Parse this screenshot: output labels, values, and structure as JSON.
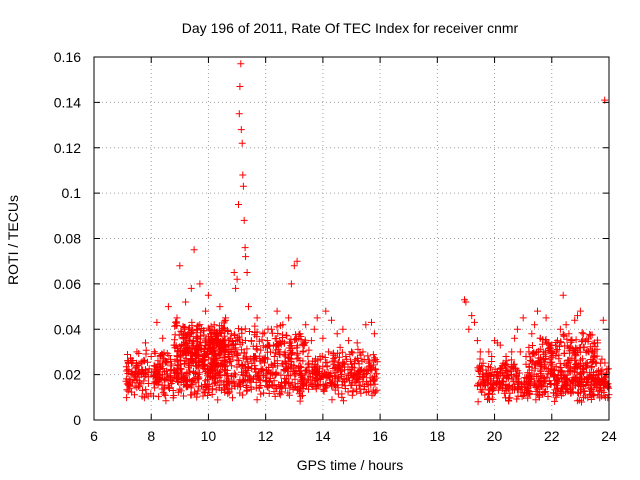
{
  "chart_data": {
    "type": "scatter",
    "title": "Day 196 of 2011, Rate Of TEC Index for receiver cnmr",
    "xlabel": "GPS time / hours",
    "ylabel": "ROTI / TECUs",
    "xlim": [
      6,
      24
    ],
    "ylim": [
      0,
      0.16
    ],
    "xticks": [
      6,
      8,
      10,
      12,
      14,
      16,
      18,
      20,
      22,
      24
    ],
    "xtick_labels": [
      "6",
      "8",
      "10",
      "12",
      "14",
      "16",
      "18",
      "20",
      "22",
      "24"
    ],
    "yticks": [
      0,
      0.02,
      0.04,
      0.06,
      0.08,
      0.1,
      0.12,
      0.14,
      0.16
    ],
    "ytick_labels": [
      "0",
      "0.02",
      "0.04",
      "0.06",
      "0.08",
      "0.1",
      "0.12",
      "0.14",
      "0.16"
    ],
    "grid": true,
    "marker": "+",
    "color": "#ff0000",
    "series": [
      {
        "name": "ROTI",
        "points": [
          [
            7.2,
            0.025
          ],
          [
            7.3,
            0.02
          ],
          [
            7.4,
            0.018
          ],
          [
            7.5,
            0.03
          ],
          [
            7.6,
            0.015
          ],
          [
            7.7,
            0.022
          ],
          [
            7.8,
            0.034
          ],
          [
            7.9,
            0.019
          ],
          [
            8.0,
            0.028
          ],
          [
            8.1,
            0.024
          ],
          [
            8.2,
            0.043
          ],
          [
            8.3,
            0.02
          ],
          [
            8.4,
            0.036
          ],
          [
            8.5,
            0.026
          ],
          [
            8.6,
            0.05
          ],
          [
            8.7,
            0.022
          ],
          [
            8.8,
            0.033
          ],
          [
            8.9,
            0.045
          ],
          [
            9.0,
            0.068
          ],
          [
            9.1,
            0.03
          ],
          [
            9.2,
            0.052
          ],
          [
            9.3,
            0.04
          ],
          [
            9.4,
            0.058
          ],
          [
            9.5,
            0.075
          ],
          [
            9.6,
            0.036
          ],
          [
            9.7,
            0.06
          ],
          [
            9.8,
            0.028
          ],
          [
            9.9,
            0.048
          ],
          [
            10.0,
            0.055
          ],
          [
            10.1,
            0.038
          ],
          [
            10.2,
            0.042
          ],
          [
            10.3,
            0.025
          ],
          [
            10.4,
            0.05
          ],
          [
            10.5,
            0.032
          ],
          [
            10.6,
            0.045
          ],
          [
            10.7,
            0.028
          ],
          [
            10.8,
            0.038
          ],
          [
            10.9,
            0.065
          ],
          [
            10.95,
            0.058
          ],
          [
            11.0,
            0.062
          ],
          [
            11.05,
            0.095
          ],
          [
            11.08,
            0.135
          ],
          [
            11.1,
            0.147
          ],
          [
            11.13,
            0.157
          ],
          [
            11.15,
            0.128
          ],
          [
            11.18,
            0.122
          ],
          [
            11.2,
            0.108
          ],
          [
            11.22,
            0.103
          ],
          [
            11.25,
            0.088
          ],
          [
            11.28,
            0.076
          ],
          [
            11.3,
            0.072
          ],
          [
            11.35,
            0.065
          ],
          [
            11.4,
            0.05
          ],
          [
            11.5,
            0.035
          ],
          [
            11.6,
            0.028
          ],
          [
            11.7,
            0.045
          ],
          [
            11.8,
            0.026
          ],
          [
            11.9,
            0.038
          ],
          [
            12.0,
            0.032
          ],
          [
            12.1,
            0.022
          ],
          [
            12.2,
            0.04
          ],
          [
            12.3,
            0.028
          ],
          [
            12.4,
            0.048
          ],
          [
            12.5,
            0.03
          ],
          [
            12.6,
            0.042
          ],
          [
            12.7,
            0.025
          ],
          [
            12.8,
            0.045
          ],
          [
            12.9,
            0.06
          ],
          [
            13.0,
            0.068
          ],
          [
            13.1,
            0.07
          ],
          [
            13.2,
            0.038
          ],
          [
            13.3,
            0.03
          ],
          [
            13.4,
            0.042
          ],
          [
            13.5,
            0.025
          ],
          [
            13.6,
            0.035
          ],
          [
            13.7,
            0.04
          ],
          [
            13.8,
            0.045
          ],
          [
            13.9,
            0.028
          ],
          [
            14.0,
            0.036
          ],
          [
            14.1,
            0.048
          ],
          [
            14.2,
            0.03
          ],
          [
            14.3,
            0.044
          ],
          [
            14.4,
            0.026
          ],
          [
            14.5,
            0.038
          ],
          [
            14.6,
            0.032
          ],
          [
            14.7,
            0.04
          ],
          [
            14.8,
            0.028
          ],
          [
            14.9,
            0.035
          ],
          [
            15.0,
            0.03
          ],
          [
            15.1,
            0.025
          ],
          [
            15.2,
            0.034
          ],
          [
            15.3,
            0.02
          ],
          [
            15.4,
            0.03
          ],
          [
            15.5,
            0.042
          ],
          [
            15.6,
            0.025
          ],
          [
            15.7,
            0.043
          ],
          [
            15.8,
            0.038
          ],
          [
            18.95,
            0.053
          ],
          [
            19.0,
            0.052
          ],
          [
            19.1,
            0.04
          ],
          [
            19.2,
            0.046
          ],
          [
            19.3,
            0.043
          ],
          [
            19.4,
            0.035
          ],
          [
            19.5,
            0.03
          ],
          [
            19.6,
            0.025
          ],
          [
            19.7,
            0.022
          ],
          [
            19.8,
            0.03
          ],
          [
            19.9,
            0.028
          ],
          [
            20.0,
            0.035
          ],
          [
            20.1,
            0.034
          ],
          [
            20.2,
            0.033
          ],
          [
            20.3,
            0.025
          ],
          [
            20.4,
            0.028
          ],
          [
            20.5,
            0.022
          ],
          [
            20.6,
            0.03
          ],
          [
            20.7,
            0.036
          ],
          [
            20.8,
            0.04
          ],
          [
            20.9,
            0.03
          ],
          [
            21.0,
            0.045
          ],
          [
            21.1,
            0.028
          ],
          [
            21.2,
            0.032
          ],
          [
            21.3,
            0.038
          ],
          [
            21.4,
            0.042
          ],
          [
            21.5,
            0.048
          ],
          [
            21.6,
            0.036
          ],
          [
            21.7,
            0.03
          ],
          [
            21.8,
            0.045
          ],
          [
            21.9,
            0.034
          ],
          [
            22.0,
            0.03
          ],
          [
            22.1,
            0.022
          ],
          [
            22.2,
            0.035
          ],
          [
            22.3,
            0.04
          ],
          [
            22.4,
            0.055
          ],
          [
            22.5,
            0.042
          ],
          [
            22.6,
            0.038
          ],
          [
            22.7,
            0.035
          ],
          [
            22.8,
            0.044
          ],
          [
            22.9,
            0.046
          ],
          [
            23.0,
            0.048
          ],
          [
            23.1,
            0.038
          ],
          [
            23.2,
            0.025
          ],
          [
            23.3,
            0.03
          ],
          [
            23.4,
            0.02
          ],
          [
            23.5,
            0.028
          ],
          [
            23.6,
            0.034
          ],
          [
            23.7,
            0.025
          ],
          [
            23.8,
            0.044
          ],
          [
            23.85,
            0.141
          ]
        ],
        "bands": [
          {
            "x": [
              7.1,
              15.9
            ],
            "y": [
              0.008,
              0.032
            ],
            "count": 900
          },
          {
            "x": [
              8.8,
              10.6
            ],
            "y": [
              0.02,
              0.045
            ],
            "count": 260
          },
          {
            "x": [
              10.2,
              13.4
            ],
            "y": [
              0.025,
              0.042
            ],
            "count": 160
          },
          {
            "x": [
              19.4,
              24.0
            ],
            "y": [
              0.007,
              0.028
            ],
            "count": 520
          },
          {
            "x": [
              21.2,
              23.6
            ],
            "y": [
              0.02,
              0.04
            ],
            "count": 140
          }
        ]
      }
    ]
  }
}
